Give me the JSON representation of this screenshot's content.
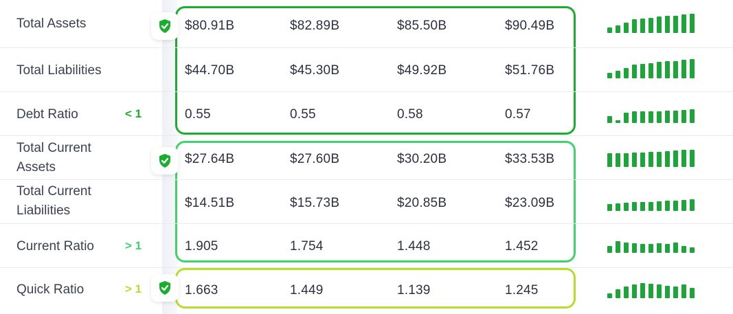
{
  "colors": {
    "group_dark_green": "#1aae2f",
    "group_light_green": "#3fd36c",
    "group_yellow_green": "#b5de2b",
    "cond_dark": "#1aae2f",
    "cond_light": "#3fd36c",
    "cond_yellow": "#b5de2b",
    "spark": "#1ea53a",
    "shield": "#1aae2f"
  },
  "rows": [
    {
      "label": "Total Assets",
      "condition": "",
      "values": [
        "$80.91B",
        "$82.89B",
        "$85.50B",
        "$90.49B"
      ],
      "spark": [
        0.3,
        0.4,
        0.55,
        0.7,
        0.75,
        0.8,
        0.85,
        0.88,
        0.9,
        0.95,
        1.0
      ]
    },
    {
      "label": "Total Liabilities",
      "condition": "",
      "values": [
        "$44.70B",
        "$45.30B",
        "$49.92B",
        "$51.76B"
      ],
      "spark": [
        0.3,
        0.4,
        0.55,
        0.7,
        0.75,
        0.8,
        0.85,
        0.88,
        0.9,
        0.95,
        1.0
      ]
    },
    {
      "label": "Debt Ratio",
      "condition": "< 1",
      "values": [
        "0.55",
        "0.55",
        "0.58",
        "0.57"
      ],
      "spark": [
        0.35,
        0.15,
        0.55,
        0.6,
        0.6,
        0.62,
        0.62,
        0.65,
        0.65,
        0.67,
        0.7
      ]
    },
    {
      "label": "Total Current Assets",
      "condition": "",
      "values": [
        "$27.64B",
        "$27.60B",
        "$30.20B",
        "$33.53B"
      ],
      "spark": [
        0.7,
        0.7,
        0.72,
        0.75,
        0.75,
        0.78,
        0.8,
        0.82,
        0.85,
        0.88,
        0.9
      ]
    },
    {
      "label": "Total Current Liabilities",
      "condition": "",
      "values": [
        "$14.51B",
        "$15.73B",
        "$20.85B",
        "$23.09B"
      ],
      "spark": [
        0.35,
        0.4,
        0.42,
        0.45,
        0.45,
        0.48,
        0.5,
        0.52,
        0.55,
        0.58,
        0.6
      ]
    },
    {
      "label": "Current Ratio",
      "condition": "> 1",
      "values": [
        "1.905",
        "1.754",
        "1.448",
        "1.452"
      ],
      "spark": [
        0.35,
        0.6,
        0.55,
        0.5,
        0.45,
        0.45,
        0.5,
        0.45,
        0.55,
        0.35,
        0.3
      ]
    },
    {
      "label": "Quick Ratio",
      "condition": "> 1",
      "values": [
        "1.663",
        "1.449",
        "1.139",
        "1.245"
      ],
      "spark": [
        0.25,
        0.45,
        0.6,
        0.7,
        0.8,
        0.75,
        0.7,
        0.65,
        0.6,
        0.7,
        0.55
      ]
    }
  ]
}
